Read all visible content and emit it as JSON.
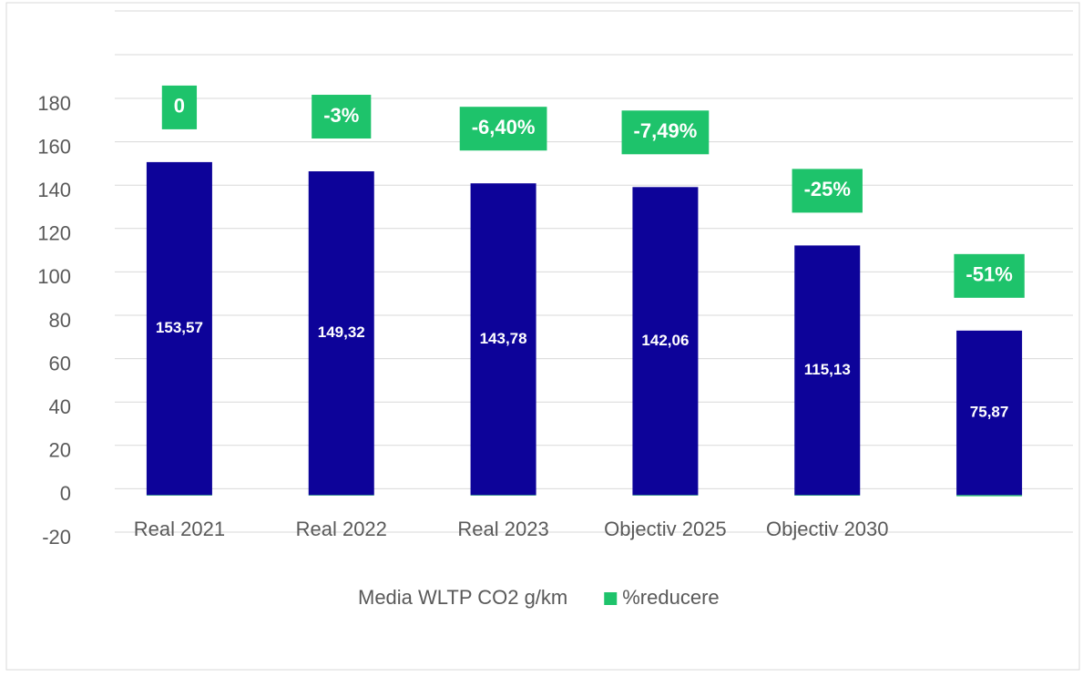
{
  "chart_data": {
    "type": "bar",
    "categories": [
      "Real 2021",
      "Real  2022",
      "Real  2023",
      "Objectiv 2025",
      "Objectiv 2030",
      null
    ],
    "series": [
      {
        "name": "Media WLTP CO2 g/km",
        "color": "#0d0399",
        "values": [
          153.57,
          149.32,
          143.78,
          142.06,
          115.13,
          75.87
        ],
        "value_labels": [
          "153,57",
          "149,32",
          "143,78",
          "142,06",
          "115,13",
          "75,87"
        ]
      },
      {
        "name": "%reducere",
        "color": "#1ec36b",
        "values": [
          0,
          -0.03,
          -0.064,
          -0.0749,
          -0.25,
          -0.51
        ],
        "value_labels": [
          "0",
          "-3%",
          "-6,40%",
          "-7,49%",
          "-25%",
          "-51%"
        ]
      }
    ],
    "ylim": [
      -20,
      180
    ],
    "yticks": [
      -20,
      0,
      20,
      40,
      60,
      80,
      100,
      120,
      140,
      160,
      180
    ],
    "grid": true,
    "legend": "bottom"
  }
}
